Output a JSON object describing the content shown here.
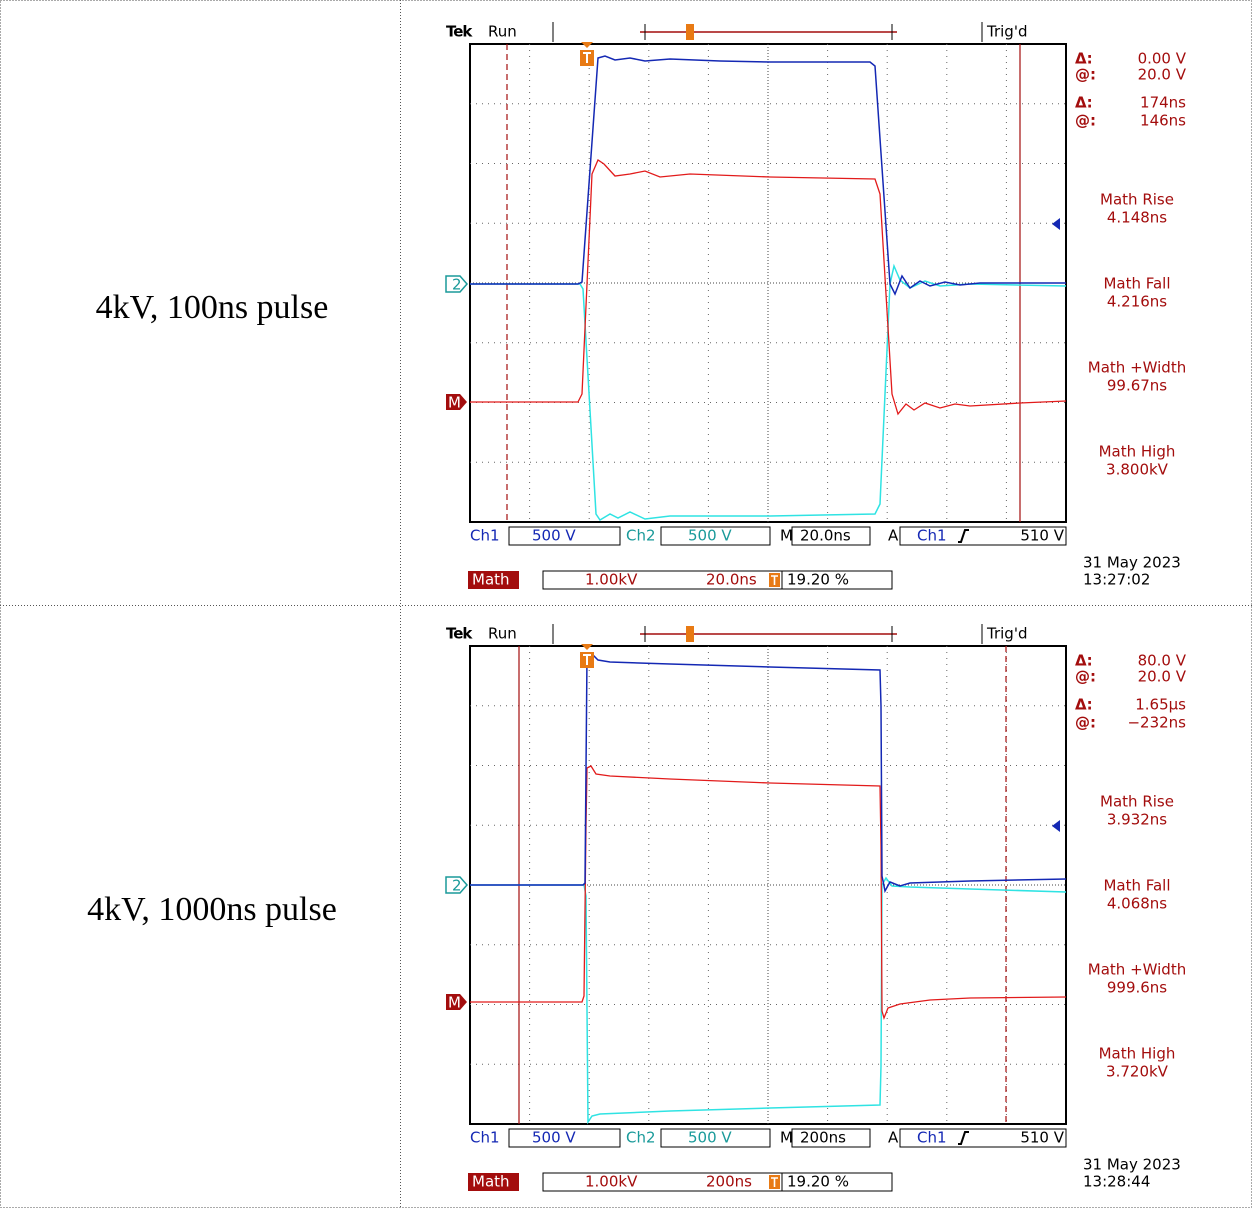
{
  "table": {
    "rows": [
      {
        "label": "4kV, 100ns pulse",
        "scope": {
          "brand": "Tek",
          "status": "Run",
          "trigger_state": "Trig'd",
          "cursors": [
            {
              "symbol": "Δ:",
              "value": "0.00 V"
            },
            {
              "symbol": "@:",
              "value": "20.0 V"
            },
            {
              "symbol": "Δ:",
              "value": "174ns"
            },
            {
              "symbol": "@:",
              "value": "146ns"
            }
          ],
          "measurements": [
            {
              "name": "Math Rise",
              "value": "4.148ns"
            },
            {
              "name": "Math Fall",
              "value": "4.216ns"
            },
            {
              "name": "Math +Width",
              "value": "99.67ns"
            },
            {
              "name": "Math High",
              "value": "3.800kV"
            }
          ],
          "markers": [
            "2",
            "M"
          ],
          "ch1_label": "Ch1",
          "ch1_scale": "500 V",
          "ch2_label": "Ch2",
          "ch2_scale": "500 V",
          "timebase_label": "M",
          "timebase": "20.0ns",
          "trigger_label": "A",
          "trigger_source": "Ch1",
          "trigger_level": "510 V",
          "math_label": "Math",
          "math_scale": "1.00kV",
          "math_timebase": "20.0ns",
          "trigger_position": "19.20 %",
          "date": "31 May 2023",
          "time": "13:27:02"
        }
      },
      {
        "label": "4kV, 1000ns pulse",
        "scope": {
          "brand": "Tek",
          "status": "Run",
          "trigger_state": "Trig'd",
          "cursors": [
            {
              "symbol": "Δ:",
              "value": "80.0 V"
            },
            {
              "symbol": "@:",
              "value": "20.0 V"
            },
            {
              "symbol": "Δ:",
              "value": "1.65µs"
            },
            {
              "symbol": "@:",
              "value": "−232ns"
            }
          ],
          "measurements": [
            {
              "name": "Math Rise",
              "value": "3.932ns"
            },
            {
              "name": "Math Fall",
              "value": "4.068ns"
            },
            {
              "name": "Math +Width",
              "value": "999.6ns"
            },
            {
              "name": "Math High",
              "value": "3.720kV"
            }
          ],
          "markers": [
            "2",
            "M"
          ],
          "ch1_label": "Ch1",
          "ch1_scale": "500 V",
          "ch2_label": "Ch2",
          "ch2_scale": "500 V",
          "timebase_label": "M",
          "timebase": "200ns",
          "trigger_label": "A",
          "trigger_source": "Ch1",
          "trigger_level": "510 V",
          "math_label": "Math",
          "math_scale": "1.00kV",
          "math_timebase": "200ns",
          "trigger_position": "19.20 %",
          "date": "31 May 2023",
          "time": "13:28:44"
        }
      }
    ]
  }
}
